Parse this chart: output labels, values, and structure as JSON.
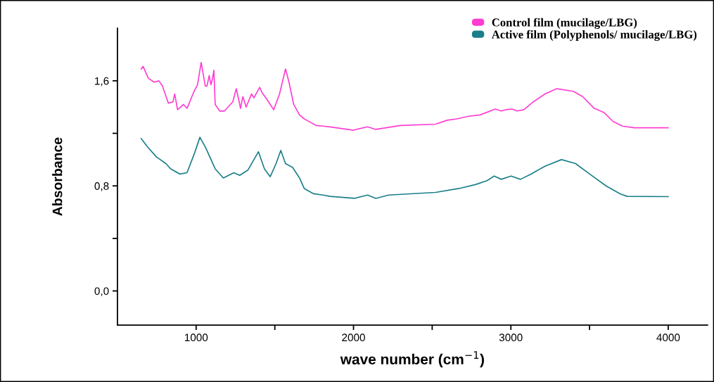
{
  "chart_data": {
    "type": "line",
    "xlabel": "wave number (cm$^{−1}$)",
    "ylabel": "Absorbance",
    "xlim": [
      500,
      4250
    ],
    "ylim": [
      -0.26,
      2.0
    ],
    "xticks": [
      {
        "value": 1000,
        "label": "1000"
      },
      {
        "value": 1500,
        "label": null
      },
      {
        "value": 2000,
        "label": "2000"
      },
      {
        "value": 2500,
        "label": null
      },
      {
        "value": 3000,
        "label": "3000"
      },
      {
        "value": 3500,
        "label": null
      },
      {
        "value": 4000,
        "label": "4000"
      }
    ],
    "yticks": [
      {
        "value": 0,
        "label": "0,0"
      },
      {
        "value": 0.4,
        "label": null
      },
      {
        "value": 0.8,
        "label": "0,8"
      },
      {
        "value": 1.2,
        "label": null
      },
      {
        "value": 1.6,
        "label": "1,6"
      }
    ],
    "grid": false,
    "legend": "top right",
    "marker": "none",
    "line_style": "solid",
    "series": [
      {
        "name": "Control film (mucilage/LBG)",
        "color": "#ff3dd2",
        "x": [
          651,
          663,
          696,
          733,
          763,
          786,
          823,
          853,
          864,
          882,
          920,
          942,
          987,
          1009,
          1032,
          1058,
          1069,
          1083,
          1094,
          1103,
          1113,
          1121,
          1150,
          1180,
          1233,
          1255,
          1270,
          1282,
          1297,
          1318,
          1352,
          1367,
          1404,
          1419,
          1449,
          1493,
          1530,
          1568,
          1590,
          1620,
          1657,
          1687,
          1702,
          1762,
          1806,
          1866,
          2000,
          2089,
          2142,
          2298,
          2521,
          2596,
          2656,
          2730,
          2804,
          2901,
          2939,
          2968,
          3009,
          3039,
          3083,
          3143,
          3217,
          3292,
          3396,
          3456,
          3530,
          3590,
          3650,
          3709,
          3784,
          4000
        ],
        "values": [
          1.69,
          1.71,
          1.62,
          1.59,
          1.6,
          1.56,
          1.43,
          1.44,
          1.5,
          1.38,
          1.42,
          1.39,
          1.52,
          1.57,
          1.74,
          1.56,
          1.56,
          1.64,
          1.57,
          1.61,
          1.68,
          1.42,
          1.37,
          1.37,
          1.44,
          1.54,
          1.46,
          1.39,
          1.48,
          1.4,
          1.5,
          1.47,
          1.55,
          1.51,
          1.46,
          1.38,
          1.5,
          1.69,
          1.59,
          1.42,
          1.34,
          1.31,
          1.3,
          1.26,
          1.255,
          1.246,
          1.224,
          1.25,
          1.23,
          1.26,
          1.27,
          1.3,
          1.31,
          1.33,
          1.34,
          1.385,
          1.37,
          1.38,
          1.385,
          1.37,
          1.38,
          1.44,
          1.5,
          1.54,
          1.52,
          1.48,
          1.39,
          1.36,
          1.29,
          1.255,
          1.242,
          1.242
        ]
      },
      {
        "name": "Active film (Polyphenols/ mucilage/LBG)",
        "color": "#1b7f8a",
        "x": [
          651,
          689,
          748,
          808,
          838,
          897,
          942,
          987,
          1024,
          1061,
          1121,
          1173,
          1240,
          1277,
          1329,
          1396,
          1434,
          1471,
          1508,
          1538,
          1568,
          1613,
          1657,
          1687,
          1747,
          1806,
          1851,
          2007,
          2089,
          2142,
          2223,
          2521,
          2670,
          2775,
          2849,
          2894,
          2939,
          3001,
          3061,
          3128,
          3217,
          3322,
          3411,
          3501,
          3605,
          3694,
          3739,
          4000
        ],
        "values": [
          1.16,
          1.1,
          1.02,
          0.97,
          0.93,
          0.89,
          0.9,
          1.04,
          1.17,
          1.09,
          0.93,
          0.86,
          0.9,
          0.88,
          0.92,
          1.06,
          0.93,
          0.87,
          0.97,
          1.07,
          0.97,
          0.94,
          0.86,
          0.78,
          0.74,
          0.73,
          0.72,
          0.705,
          0.73,
          0.705,
          0.73,
          0.75,
          0.78,
          0.81,
          0.84,
          0.875,
          0.85,
          0.875,
          0.85,
          0.89,
          0.95,
          1.0,
          0.97,
          0.89,
          0.8,
          0.74,
          0.72,
          0.718
        ]
      }
    ]
  }
}
